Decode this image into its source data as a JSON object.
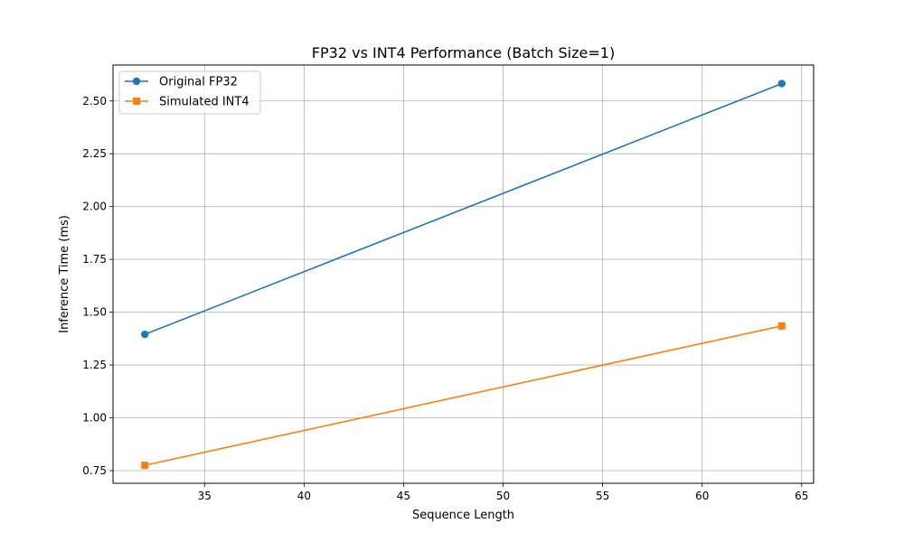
{
  "chart_data": {
    "type": "line",
    "title": "FP32 vs INT4 Performance (Batch Size=1)",
    "xlabel": "Sequence Length",
    "ylabel": "Inference Time (ms)",
    "xlim": [
      30.4,
      65.6
    ],
    "ylim": [
      0.69,
      2.67
    ],
    "xticks": [
      35,
      40,
      45,
      50,
      55,
      60,
      65
    ],
    "yticks": [
      0.75,
      1.0,
      1.25,
      1.5,
      1.75,
      2.0,
      2.25,
      2.5
    ],
    "xtick_labels": [
      "35",
      "40",
      "45",
      "50",
      "55",
      "60",
      "65"
    ],
    "ytick_labels": [
      "0.75",
      "1.00",
      "1.25",
      "1.50",
      "1.75",
      "2.00",
      "2.25",
      "2.50"
    ],
    "grid": true,
    "legend_position": "upper-left",
    "x": [
      32,
      64
    ],
    "series": [
      {
        "name": "Original FP32",
        "values": [
          1.395,
          2.582
        ],
        "color": "#1f77b4",
        "marker": "circle"
      },
      {
        "name": "Simulated INT4",
        "values": [
          0.775,
          1.435
        ],
        "color": "#ff7f0e",
        "marker": "square"
      }
    ]
  }
}
